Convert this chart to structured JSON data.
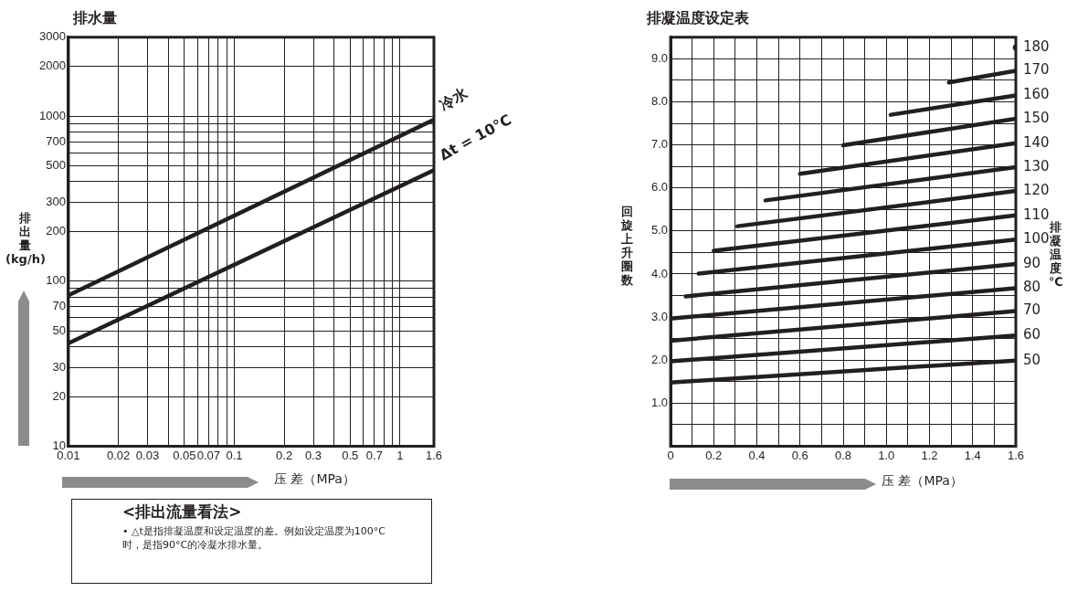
{
  "chart_data": [
    {
      "type": "line",
      "title": "排水量",
      "xlabel": "压 差（MPa）",
      "ylabel": "排出量(kg/h)",
      "log": "xy",
      "grid": true,
      "legend": false,
      "marker": "none",
      "line_style": "solid",
      "xlim": [
        0.01,
        1.6
      ],
      "xticks": [
        0.01,
        0.02,
        0.03,
        {
          "value": 0.04,
          "label": null
        },
        0.05,
        {
          "value": 0.06,
          "label": null
        },
        0.07,
        {
          "value": 0.08,
          "label": null
        },
        {
          "value": 0.09,
          "label": null
        },
        0.1,
        0.2,
        0.3,
        {
          "value": 0.4,
          "label": null
        },
        0.5,
        {
          "value": 0.6,
          "label": null
        },
        0.7,
        {
          "value": 0.8,
          "label": null
        },
        {
          "value": 0.9,
          "label": null
        },
        1,
        1.6
      ],
      "ylim": [
        10,
        3000
      ],
      "yticks": [
        10,
        20,
        30,
        {
          "value": 40,
          "label": null
        },
        50,
        {
          "value": 60,
          "label": null
        },
        70,
        {
          "value": 80,
          "label": null
        },
        {
          "value": 90,
          "label": null
        },
        100,
        200,
        300,
        {
          "value": 400,
          "label": null
        },
        500,
        {
          "value": 600,
          "label": null
        },
        700,
        {
          "value": 800,
          "label": null
        },
        {
          "value": 900,
          "label": null
        },
        1000,
        2000,
        3000
      ],
      "series": [
        {
          "name": "冷水",
          "color": "#231f20",
          "x": [
            0.01,
            1.6
          ],
          "values": [
            82,
            950
          ]
        },
        {
          "name": "Δt = 10°C",
          "color": "#231f20",
          "x": [
            0.01,
            1.6
          ],
          "values": [
            42,
            470
          ]
        }
      ],
      "annotations": [
        "<排出流量看法>",
        "• △t是指排凝温度和设定温度的差。例如设定温度为100°C时，是指90°C的冷凝水排水量。"
      ]
    },
    {
      "type": "line",
      "title": "排凝温度设定表",
      "xlabel": "压 差（MPa）",
      "ylabel": "回旋上升圈数",
      "y2label": "排凝温度℃",
      "grid": true,
      "legend": false,
      "marker": "none",
      "line_style": "solid",
      "xlim": [
        0,
        1.6
      ],
      "xticks": [
        0,
        {
          "value": 0.1,
          "label": null
        },
        0.2,
        {
          "value": 0.3,
          "label": null
        },
        0.4,
        {
          "value": 0.5,
          "label": null
        },
        0.6,
        {
          "value": 0.7,
          "label": null
        },
        0.8,
        {
          "value": 0.9,
          "label": null
        },
        {
          "value": 1,
          "label": "1.0"
        },
        {
          "value": 1.1,
          "label": null
        },
        1.2,
        {
          "value": 1.3,
          "label": null
        },
        1.4,
        {
          "value": 1.5,
          "label": null
        },
        1.6
      ],
      "ylim": [
        0,
        9.5
      ],
      "yticks": [
        {
          "value": 0,
          "label": null
        },
        {
          "value": 0.5,
          "label": null
        },
        {
          "value": 1,
          "label": "1.0"
        },
        {
          "value": 1.5,
          "label": null
        },
        {
          "value": 2,
          "label": "2.0"
        },
        {
          "value": 2.5,
          "label": null
        },
        {
          "value": 3,
          "label": "3.0"
        },
        {
          "value": 3.5,
          "label": null
        },
        {
          "value": 4,
          "label": "4.0"
        },
        {
          "value": 4.5,
          "label": null
        },
        {
          "value": 5,
          "label": "5.0"
        },
        {
          "value": 5.5,
          "label": null
        },
        {
          "value": 6,
          "label": "6.0"
        },
        {
          "value": 6.5,
          "label": null
        },
        {
          "value": 7,
          "label": "7.0"
        },
        {
          "value": 7.5,
          "label": null
        },
        {
          "value": 8,
          "label": "8.0"
        },
        {
          "value": 8.5,
          "label": null
        },
        {
          "value": 9,
          "label": "9.0"
        },
        {
          "value": 9.5,
          "label": null
        }
      ],
      "series": [
        {
          "name": "50",
          "color": "#231f20",
          "x": [
            0,
            1.6
          ],
          "values": [
            1.48,
            1.99
          ]
        },
        {
          "name": "60",
          "color": "#231f20",
          "x": [
            0,
            1.6
          ],
          "values": [
            1.97,
            2.57
          ]
        },
        {
          "name": "70",
          "color": "#231f20",
          "x": [
            0,
            1.6
          ],
          "values": [
            2.45,
            3.14
          ]
        },
        {
          "name": "80",
          "color": "#231f20",
          "x": [
            0.01,
            1.6
          ],
          "values": [
            2.97,
            3.67
          ]
        },
        {
          "name": "90",
          "color": "#231f20",
          "x": [
            0.07,
            1.6
          ],
          "values": [
            3.48,
            4.23
          ]
        },
        {
          "name": "100",
          "color": "#231f20",
          "x": [
            0.13,
            1.6
          ],
          "values": [
            4.01,
            4.8
          ]
        },
        {
          "name": "110",
          "color": "#231f20",
          "x": [
            0.2,
            1.6
          ],
          "values": [
            4.54,
            5.36
          ]
        },
        {
          "name": "120",
          "color": "#231f20",
          "x": [
            0.31,
            1.6
          ],
          "values": [
            5.11,
            5.93
          ]
        },
        {
          "name": "130",
          "color": "#231f20",
          "x": [
            0.44,
            1.6
          ],
          "values": [
            5.71,
            6.48
          ]
        },
        {
          "name": "140",
          "color": "#231f20",
          "x": [
            0.6,
            1.6
          ],
          "values": [
            6.33,
            7.04
          ]
        },
        {
          "name": "150",
          "color": "#231f20",
          "x": [
            0.8,
            1.6
          ],
          "values": [
            6.99,
            7.61
          ]
        },
        {
          "name": "160",
          "color": "#231f20",
          "x": [
            1.02,
            1.6
          ],
          "values": [
            7.7,
            8.15
          ]
        },
        {
          "name": "170",
          "color": "#231f20",
          "x": [
            1.29,
            1.6
          ],
          "values": [
            8.45,
            8.72
          ]
        },
        {
          "name": "180",
          "color": "#231f20",
          "type": "scatter",
          "marker": "circle",
          "x": [
            1.6
          ],
          "values": [
            9.26
          ]
        }
      ]
    }
  ]
}
